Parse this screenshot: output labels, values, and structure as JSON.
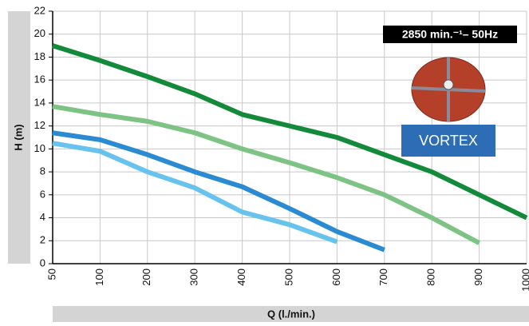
{
  "chart_data": {
    "type": "line",
    "xlabel": "Q (l./min.)",
    "ylabel": "H (m)",
    "annotation": "2850 min.⁻¹– 50Hz",
    "badge": "VORTEX",
    "categories": [
      "50",
      "100",
      "200",
      "300",
      "400",
      "500",
      "600",
      "700",
      "800",
      "900",
      "1000"
    ],
    "series": [
      {
        "color": "#138a3a",
        "values": [
          19,
          17.7,
          16.3,
          14.8,
          13,
          12,
          11,
          9.5,
          8,
          6,
          4
        ]
      },
      {
        "color": "#7dc383",
        "values": [
          13.7,
          13,
          12.4,
          11.4,
          10,
          8.8,
          7.5,
          6,
          4,
          1.8,
          null
        ]
      },
      {
        "color": "#2a8bd2",
        "values": [
          11.4,
          10.8,
          9.5,
          8,
          6.7,
          4.8,
          2.8,
          1.2,
          null,
          null,
          null
        ]
      },
      {
        "color": "#68c2ee",
        "values": [
          10.5,
          9.8,
          8,
          6.6,
          4.5,
          3.4,
          1.9,
          null,
          null,
          null,
          null
        ]
      }
    ],
    "ylim": [
      0,
      22
    ],
    "yticks": [
      0,
      2,
      4,
      6,
      8,
      10,
      12,
      14,
      16,
      18,
      20,
      22
    ],
    "grid": true
  }
}
